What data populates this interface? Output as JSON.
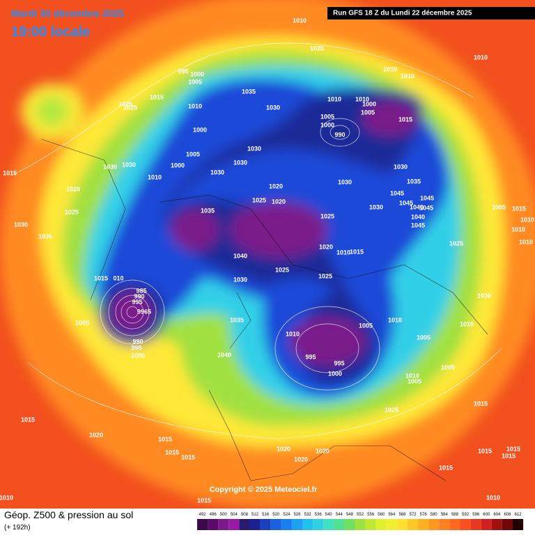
{
  "header": {
    "date": "Mardi 30 décembre 2025",
    "time": "19:00 locale",
    "run": "Run GFS 18 Z du Lundi 22 décembre 2025"
  },
  "map": {
    "pressure_labels": [
      "1010",
      "1025",
      "1010",
      "1010",
      "1010",
      "995",
      "1000",
      "1005",
      "1035",
      "1015",
      "1025",
      "1025",
      "1010",
      "1010",
      "1010",
      "1000",
      "1005",
      "1000",
      "990",
      "1005",
      "1015",
      "1000",
      "1030",
      "1005",
      "1000",
      "1010",
      "1030",
      "1030",
      "1030",
      "1030",
      "1030",
      "1030",
      "1035",
      "1020",
      "1025",
      "1020",
      "1030",
      "1045",
      "1045",
      "1045",
      "1040",
      "1045",
      "1030",
      "1035",
      "1025",
      "1040",
      "1045",
      "1025",
      "1005",
      "1015",
      "1010",
      "1010",
      "1010",
      "1015",
      "1020",
      "1025",
      "1030",
      "1035",
      "1020",
      "1010",
      "1015",
      "1040",
      "1025",
      "1025",
      "1030",
      "1015",
      "010",
      "985",
      "990",
      "995",
      "9965",
      "1035",
      "1005",
      "1010",
      "1005",
      "1010",
      "1010",
      "1030",
      "1005",
      "990",
      "995",
      "1000",
      "1040",
      "995",
      "995",
      "1000",
      "1010",
      "1005",
      "1005",
      "1025",
      "1015",
      "1015",
      "1020",
      "1015",
      "1015",
      "1015",
      "1020",
      "1020",
      "1020",
      "1015",
      "1015",
      "1015",
      "1015",
      "1010",
      "1010",
      "1015"
    ],
    "copyright": "Copyright © 2025 Meteociel.fr"
  },
  "footer": {
    "title": "Géop. Z500 & pression au sol",
    "lead": "(+ 192h)"
  },
  "legend": {
    "ticks": [
      "492",
      "496",
      "500",
      "504",
      "508",
      "512",
      "516",
      "520",
      "524",
      "528",
      "532",
      "536",
      "540",
      "544",
      "548",
      "552",
      "556",
      "560",
      "564",
      "568",
      "572",
      "576",
      "580",
      "584",
      "588",
      "592",
      "596",
      "600",
      "604",
      "608",
      "612"
    ],
    "colors": [
      "#3a0a4a",
      "#5a0a6a",
      "#7a1a8a",
      "#9a1aa8",
      "#2a1a70",
      "#1a2090",
      "#1a40c0",
      "#1a60e0",
      "#1a80f0",
      "#20a0f0",
      "#20c0f0",
      "#30d0e0",
      "#40e0c0",
      "#50e090",
      "#70e060",
      "#a0e040",
      "#c0e830",
      "#e0f030",
      "#f0f030",
      "#ffe030",
      "#ffc828",
      "#ffb020",
      "#ff9820",
      "#ff8020",
      "#ff6820",
      "#f85020",
      "#e83820",
      "#d02020",
      "#a01010",
      "#700808",
      "#200000"
    ]
  }
}
